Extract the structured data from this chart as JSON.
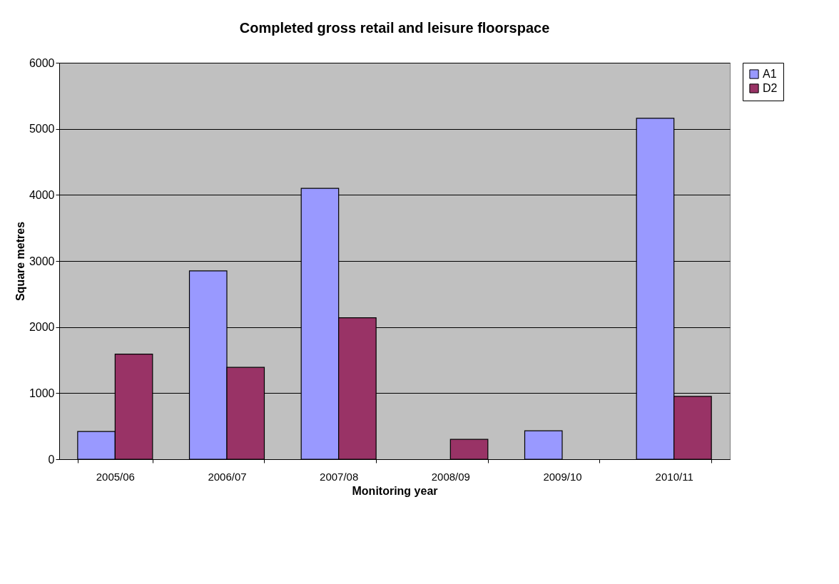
{
  "chart_data": {
    "type": "bar",
    "title": "Completed gross retail and leisure floorspace",
    "xlabel": "Monitoring year",
    "ylabel": "Square metres",
    "categories": [
      "2005/06",
      "2006/07",
      "2007/08",
      "2008/09",
      "2009/10",
      "2010/11"
    ],
    "series": [
      {
        "name": "A1",
        "color": "#9999ff",
        "values": [
          420,
          2850,
          4100,
          null,
          430,
          5160
        ]
      },
      {
        "name": "D2",
        "color": "#993366",
        "values": [
          1590,
          1390,
          2140,
          300,
          null,
          950
        ]
      }
    ],
    "ylim": [
      0,
      6000
    ],
    "yticks": [
      0,
      1000,
      2000,
      3000,
      4000,
      5000,
      6000
    ],
    "grid": "y",
    "legend": "right"
  }
}
